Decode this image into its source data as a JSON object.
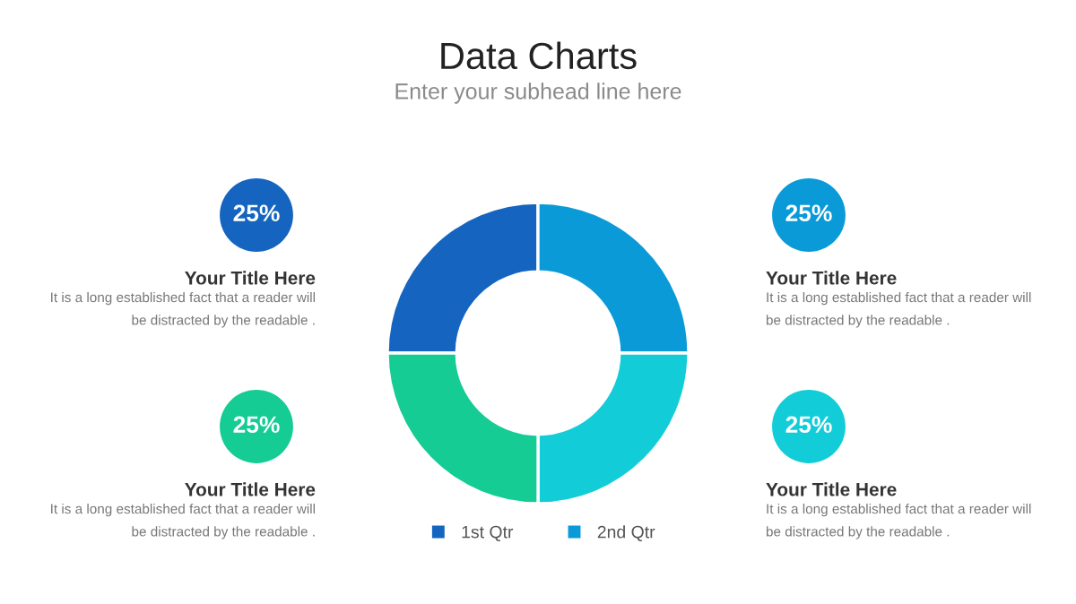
{
  "chart_data": {
    "type": "donut",
    "title": "Data Charts",
    "subtitle": "Enter your subhead line here",
    "categories": [
      "1st Qtr",
      "2nd Qtr",
      null,
      null
    ],
    "values": [
      25,
      25,
      25,
      25
    ],
    "colors": [
      "#1565c0",
      "#0a9ad8",
      "#12cdd8",
      "#14cc94"
    ],
    "legend": "bottom",
    "annotations": [
      "25%",
      "Your Title Here",
      "It is a long established fact that a reader will\nbe distracted by the readable .",
      "25%",
      "Your Title Here",
      "It is a long established fact that a reader will\nbe distracted by the readable .",
      "25%",
      "Your Title Here",
      "It is a long established fact that a reader will\nbe distracted by the readable .",
      "25%",
      "Your Title Here",
      "It is a long established fact that a reader will\nbe distracted by the readable ."
    ]
  }
}
